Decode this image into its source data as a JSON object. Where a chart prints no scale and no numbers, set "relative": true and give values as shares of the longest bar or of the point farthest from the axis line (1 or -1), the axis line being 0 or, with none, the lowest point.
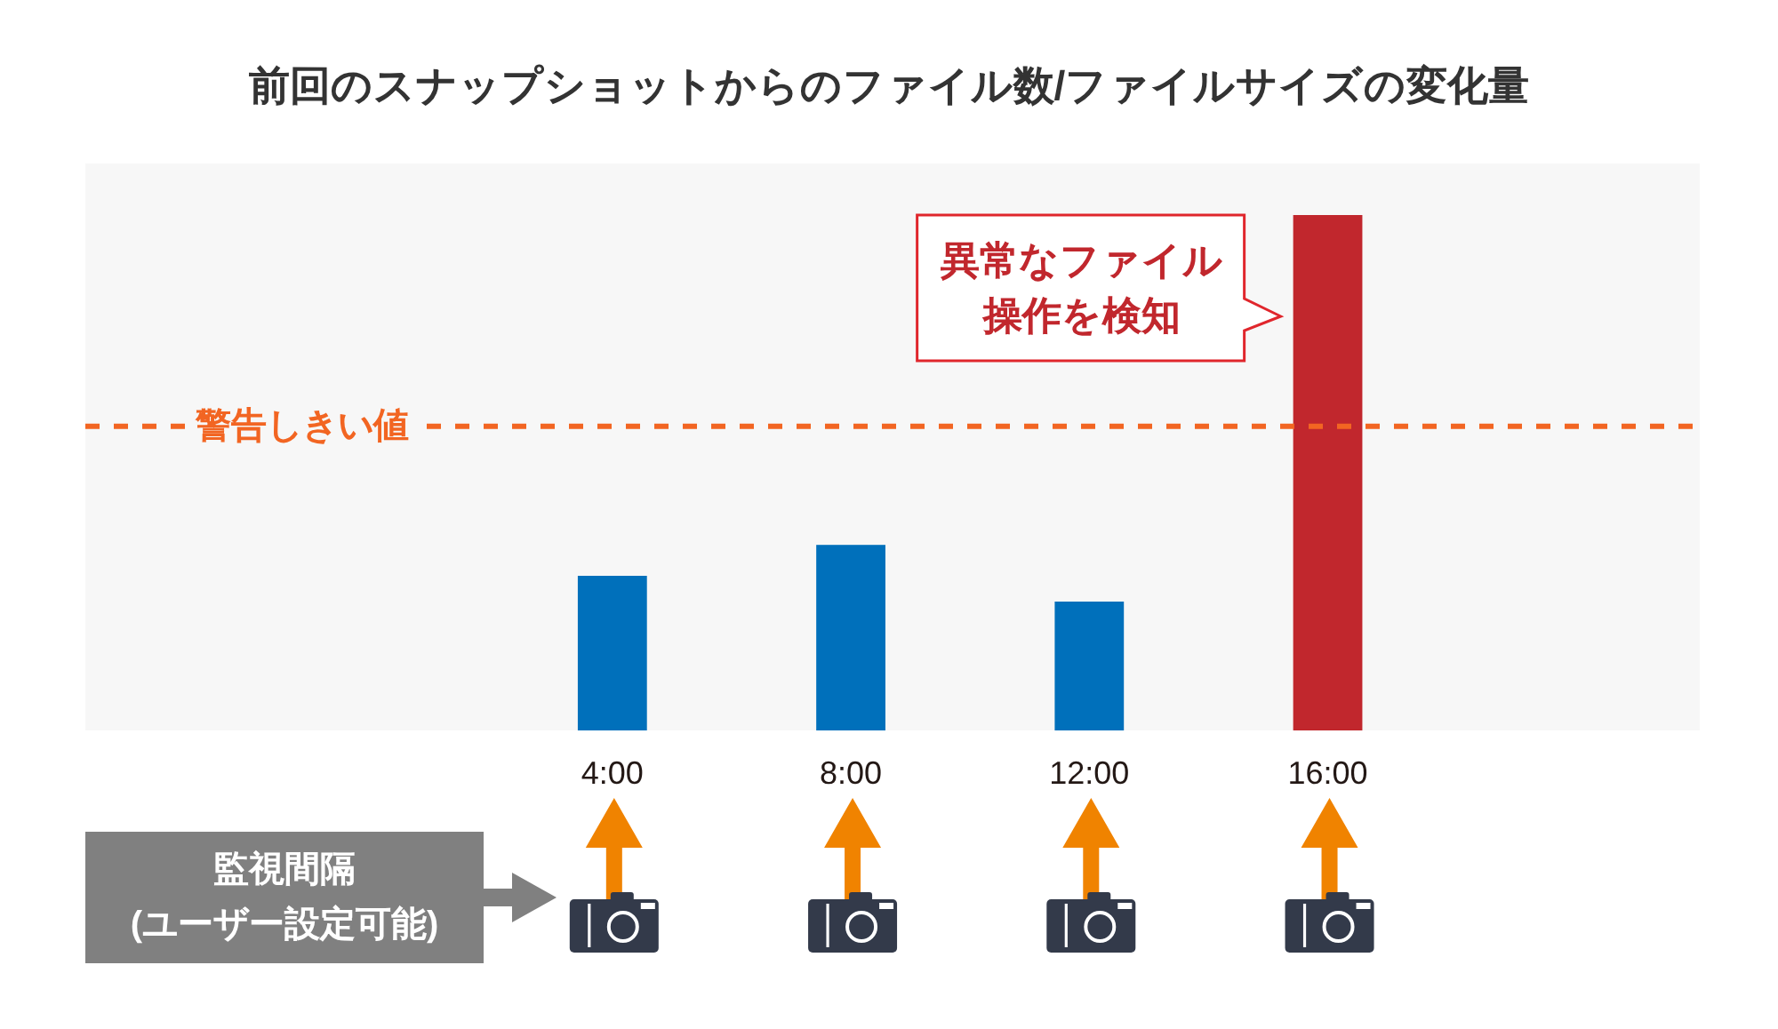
{
  "chart_data": {
    "type": "bar",
    "title": "前回のスナップショットからのファイル数/ファイルサイズの変化量",
    "categories": [
      "4:00",
      "8:00",
      "12:00",
      "16:00"
    ],
    "values": [
      0.3,
      0.36,
      0.25,
      1
    ],
    "colors": [
      "#0070bb",
      "#0070bb",
      "#0070bb",
      "#c1272d"
    ],
    "relative": true,
    "ref_lines": [
      {
        "axis": "y",
        "value": 0.59,
        "label": "警告しきい値",
        "color": "#f26522",
        "line_style": "dashed"
      }
    ],
    "annotations": [
      "異常なファイル操作を検知",
      "監視間隔\n(ユーザー設定可能)"
    ]
  }
}
